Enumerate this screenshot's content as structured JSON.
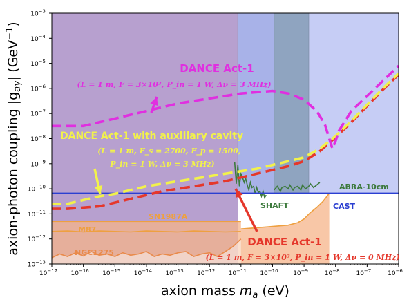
{
  "chart_data": {
    "type": "line",
    "xlabel": "axion mass m_a (eV)",
    "ylabel": "axion-photon coupling |g_aγ| (GeV^-1)",
    "xscale": "log",
    "yscale": "log",
    "xlim": [
      1e-17,
      1e-06
    ],
    "ylim": [
      1e-13,
      0.001
    ],
    "x_ticks": [
      -17,
      -16,
      -15,
      -14,
      -13,
      -12,
      -11,
      -10,
      -9,
      -8,
      -7,
      -6
    ],
    "y_ticks": [
      -13,
      -12,
      -11,
      -10,
      -9,
      -8,
      -7,
      -6,
      -5,
      -4,
      -3
    ],
    "colors": {
      "purple_region": "#b7a0cf",
      "blue_region": "#a8b2e8",
      "slate_region": "#8fa4c0",
      "light_blue_region": "#c6cdf5",
      "astro_orange": "#f5b48a",
      "cast": "#2b3fd1",
      "dance": "#e02fe0",
      "dance_aux": "#f2f24a",
      "dance_dnu0": "#e5372b",
      "shaft_abra": "#3d7a3d",
      "sn_m87": "#eea040",
      "ngc": "#e98a4a"
    },
    "series": [
      {
        "name": "DANCE Act-1",
        "style": "dashed",
        "log10_x": [
          -17.0,
          -16.5,
          -16.0,
          -15.5,
          -15.0,
          -14.5,
          -14.0,
          -13.5,
          -13.0,
          -12.5,
          -12.0,
          -11.5,
          -11.0,
          -10.5,
          -10.0,
          -9.5,
          -9.0,
          -8.6,
          -8.35,
          -8.2,
          -8.1,
          -8.0,
          -7.9,
          -7.5,
          -7.0,
          -6.5,
          -6.0
        ],
        "log10_y": [
          -7.5,
          -7.5,
          -7.5,
          -7.35,
          -7.2,
          -7.05,
          -6.9,
          -6.75,
          -6.6,
          -6.5,
          -6.4,
          -6.3,
          -6.2,
          -6.15,
          -6.1,
          -6.2,
          -6.45,
          -6.9,
          -7.4,
          -8.0,
          -8.4,
          -8.1,
          -7.7,
          -6.9,
          -6.3,
          -5.7,
          -5.1
        ]
      },
      {
        "name": "DANCE Act-1 with auxiliary cavity",
        "style": "dashed",
        "log10_x": [
          -17.0,
          -16.5,
          -16.0,
          -15.5,
          -15.0,
          -14.5,
          -14.0,
          -13.5,
          -13.0,
          -12.5,
          -12.0,
          -11.5,
          -11.0,
          -10.5,
          -10.0,
          -9.5,
          -9.0,
          -8.5,
          -8.0,
          -7.5,
          -7.0,
          -6.5,
          -6.0
        ],
        "log10_y": [
          -10.6,
          -10.6,
          -10.45,
          -10.3,
          -10.2,
          -10.05,
          -9.9,
          -9.8,
          -9.7,
          -9.6,
          -9.5,
          -9.4,
          -9.3,
          -9.2,
          -9.05,
          -8.9,
          -8.75,
          -8.4,
          -7.9,
          -7.3,
          -6.65,
          -6.0,
          -5.4
        ]
      },
      {
        "name": "DANCE Act-1 (Δν = 0 MHz)",
        "style": "dashed",
        "log10_x": [
          -17.0,
          -16.5,
          -16.0,
          -15.5,
          -15.0,
          -14.5,
          -14.0,
          -13.5,
          -13.0,
          -12.5,
          -12.0,
          -11.5,
          -11.0,
          -10.5,
          -10.0,
          -9.5,
          -9.0,
          -8.5,
          -8.0,
          -7.5,
          -7.0,
          -6.5,
          -6.0
        ],
        "log10_y": [
          -10.8,
          -10.8,
          -10.75,
          -10.7,
          -10.55,
          -10.4,
          -10.25,
          -10.1,
          -10.0,
          -9.9,
          -9.8,
          -9.7,
          -9.55,
          -9.4,
          -9.25,
          -9.1,
          -8.9,
          -8.5,
          -7.95,
          -7.35,
          -6.7,
          -6.05,
          -5.45
        ]
      },
      {
        "name": "CAST",
        "style": "solid",
        "log10_x": [
          -17.0,
          -6.0
        ],
        "log10_y": [
          -10.18,
          -10.18
        ]
      },
      {
        "name": "SHAFT",
        "style": "solid",
        "log10_x": [
          -11.2,
          -11.15,
          -11.1,
          -11.05,
          -11.0,
          -10.95,
          -10.9,
          -10.85,
          -10.8,
          -10.75,
          -10.7,
          -10.65,
          -10.6,
          -10.55,
          -10.5,
          -10.45,
          -10.4,
          -10.35,
          -10.3,
          -10.25,
          -10.2
        ],
        "log10_y": [
          -8.95,
          -9.8,
          -9.05,
          -9.9,
          -9.4,
          -9.55,
          -9.75,
          -9.6,
          -9.85,
          -10.05,
          -9.75,
          -9.95,
          -9.9,
          -10.2,
          -9.95,
          -10.15,
          -10.1,
          -10.3,
          -10.1,
          -10.35,
          -10.25
        ]
      },
      {
        "name": "ABRA-10cm",
        "style": "solid",
        "log10_x": [
          -9.95,
          -9.85,
          -9.75,
          -9.7,
          -9.6,
          -9.5,
          -9.45,
          -9.35,
          -9.3,
          -9.2,
          -9.1,
          -9.05,
          -8.95,
          -8.85,
          -8.8,
          -8.7,
          -8.6,
          -8.5
        ],
        "log10_y": [
          -10.05,
          -9.9,
          -10.1,
          -9.95,
          -9.9,
          -10.0,
          -9.85,
          -10.05,
          -9.95,
          -9.9,
          -10.05,
          -9.85,
          -10.0,
          -9.9,
          -9.8,
          -9.95,
          -9.85,
          -9.75
        ]
      },
      {
        "name": "SN1987A",
        "style": "solid",
        "log10_x": [
          -17.0,
          -11.0
        ],
        "log10_y": [
          -11.3,
          -11.3
        ]
      },
      {
        "name": "M87",
        "style": "solid",
        "log10_x": [
          -17.0,
          -16.5,
          -16.0,
          -15.5,
          -15.0,
          -14.5,
          -14.0,
          -13.5,
          -13.0,
          -12.5,
          -12.0,
          -11.5,
          -11.0
        ],
        "log10_y": [
          -11.7,
          -11.68,
          -11.72,
          -11.68,
          -11.7,
          -11.72,
          -11.68,
          -11.7,
          -11.72,
          -11.68,
          -11.7,
          -11.72,
          -11.7
        ]
      },
      {
        "name": "NGC1275",
        "style": "solid",
        "log10_x": [
          -17.0,
          -16.75,
          -16.5,
          -16.25,
          -16.0,
          -15.75,
          -15.5,
          -15.25,
          -15.0,
          -14.75,
          -14.5,
          -14.25,
          -14.0,
          -13.75,
          -13.5,
          -13.25,
          -13.0,
          -12.75,
          -12.5,
          -12.25,
          -12.0,
          -11.75,
          -11.5,
          -11.25,
          -11.0
        ],
        "log10_y": [
          -12.75,
          -12.6,
          -12.7,
          -12.55,
          -12.68,
          -12.5,
          -12.65,
          -12.6,
          -12.7,
          -12.55,
          -12.65,
          -12.6,
          -12.5,
          -12.7,
          -12.6,
          -12.65,
          -12.55,
          -12.5,
          -12.7,
          -12.6,
          -12.55,
          -12.7,
          -12.5,
          -12.3,
          -12.0
        ]
      },
      {
        "name": "Astro boundary",
        "style": "solid",
        "log10_x": [
          -11.0,
          -10.5,
          -10.0,
          -9.5,
          -9.2,
          -9.0,
          -8.8,
          -8.6,
          -8.4,
          -8.2
        ],
        "log10_y": [
          -11.6,
          -11.55,
          -11.5,
          -11.45,
          -11.35,
          -11.2,
          -10.95,
          -10.75,
          -10.5,
          -10.18
        ]
      }
    ],
    "regions": [
      {
        "name": "purple",
        "log10_x": [
          -17.0,
          -11.1
        ],
        "log10_y": [
          -13.0,
          -3.0
        ]
      },
      {
        "name": "blue",
        "log10_x": [
          -11.1,
          -9.95
        ],
        "log10_y": [
          -10.18,
          -3.0
        ]
      },
      {
        "name": "slate",
        "log10_x": [
          -9.95,
          -8.85
        ],
        "log10_y": [
          -10.18,
          -3.0
        ]
      },
      {
        "name": "light_blue",
        "log10_x": [
          -8.85,
          -6.0
        ],
        "log10_y": [
          -10.18,
          -3.0
        ]
      }
    ],
    "annotations": [
      {
        "label_bind": "DANCE Act-1",
        "log10_x": [
          -9.2,
          -10.9
        ],
        "log10_y": [
          -7.05,
          -6.2
        ],
        "color": "dance"
      },
      {
        "label_bind": "DANCE Act-1 with auxiliary cavity",
        "log10_x": [
          -15.2,
          -15.5
        ],
        "log10_y": [
          -8.1,
          -8.1
        ],
        "color": "dance_aux"
      },
      {
        "label_bind": "DANCE Act-1 (Δν = 0 MHz)",
        "log10_x": [
          -12.0,
          -13.4
        ],
        "log10_y": [
          -10.0,
          -10.3
        ],
        "color": "dance_dnu0"
      }
    ]
  },
  "labels": {
    "x_title": "axion mass ",
    "x_title_var": "m",
    "x_title_sub": "a",
    "x_title_unit": " (eV)",
    "y_title_main": "axion-photon coupling |g",
    "y_title_sub": "aγ",
    "y_title_end": "| (GeV",
    "y_title_sup": "−1",
    "y_title_close": ")",
    "dance_title": "DANCE Act-1",
    "dance_params": "(L = 1 m, F = 3×10³, P_in = 1 W, Δν = 3 MHz)",
    "aux_title": "DANCE Act-1 with auxiliary cavity",
    "aux_params_1": "(L = 1 m, F_s = 2700, F_p = 1500,",
    "aux_params_2": "P_in = 1 W, Δν = 3  MHz)",
    "dnu0_title": "DANCE Act-1",
    "dnu0_params": "(L = 1 m, F = 3×10³, P_in = 1 W, Δν = 0 MHz)",
    "abra": "ABRA-10cm",
    "shaft": "SHAFT",
    "cast": "CAST",
    "sn": "SN1987A",
    "m87": "M87",
    "ngc": "NGC1275"
  }
}
